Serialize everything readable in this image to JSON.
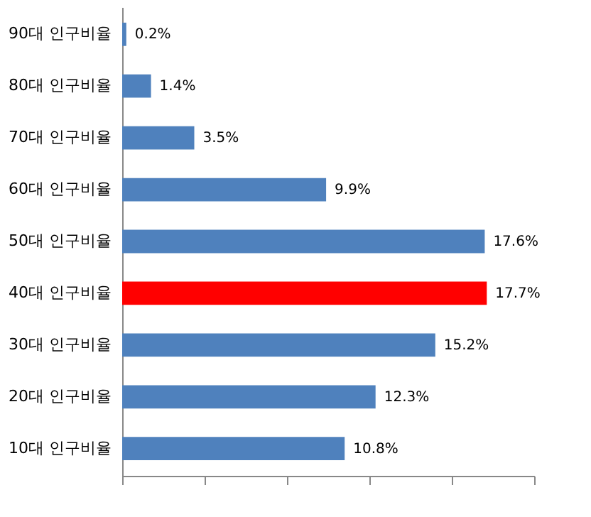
{
  "chart_data": {
    "type": "bar",
    "orientation": "horizontal",
    "categories": [
      "90대 인구비율",
      "80대 인구비율",
      "70대 인구비율",
      "60대 인구비율",
      "50대 인구비율",
      "40대 인구비율",
      "30대 인구비율",
      "20대 인구비율",
      "10대 인구비율"
    ],
    "values": [
      0.2,
      1.4,
      3.5,
      9.9,
      17.6,
      17.7,
      15.2,
      12.3,
      10.8
    ],
    "value_labels": [
      "0.2%",
      "1.4%",
      "3.5%",
      "9.9%",
      "17.6%",
      "17.7%",
      "15.2%",
      "12.3%",
      "10.8%"
    ],
    "colors": [
      "#4f81bd",
      "#4f81bd",
      "#4f81bd",
      "#4f81bd",
      "#4f81bd",
      "#ff0000",
      "#4f81bd",
      "#4f81bd",
      "#4f81bd"
    ],
    "xlim": [
      0,
      20
    ],
    "xticks": [
      {
        "value": 0,
        "label": null
      },
      {
        "value": 4,
        "label": null
      },
      {
        "value": 8,
        "label": null
      },
      {
        "value": 12,
        "label": null
      },
      {
        "value": 16,
        "label": null
      },
      {
        "value": 20,
        "label": null
      }
    ],
    "tick_labels": "y",
    "grid": false
  }
}
